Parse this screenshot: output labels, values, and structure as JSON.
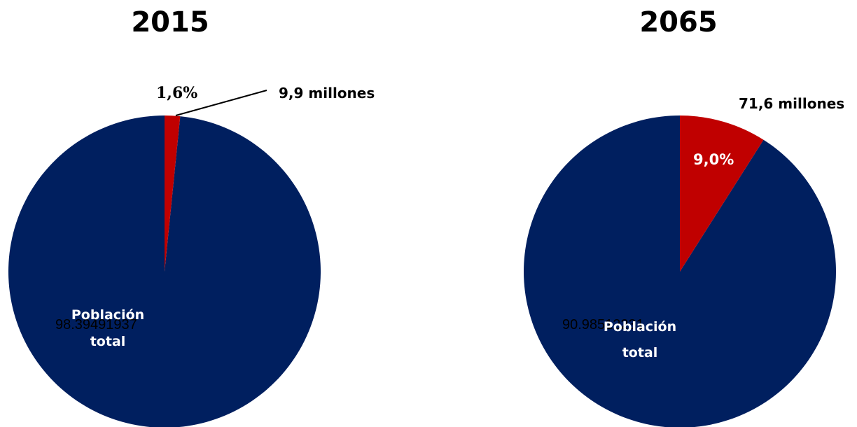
{
  "chart_data": [
    {
      "type": "pie",
      "title": "2015",
      "slices": [
        {
          "label": "Población total",
          "value": 98.39491937,
          "value_label": "98.39491937",
          "color": "#001f5f"
        },
        {
          "label": "9,9 millones",
          "value": 1.6,
          "value_label": "1,6%",
          "color": "#c00000"
        }
      ]
    },
    {
      "type": "pie",
      "title": "2065",
      "slices": [
        {
          "label": "Población total",
          "value": 90.98512231,
          "value_label": "90.98512231",
          "color": "#001f5f"
        },
        {
          "label": "71,6 millones",
          "value": 9.0,
          "value_label": "9,0%",
          "color": "#c00000"
        }
      ]
    }
  ],
  "labels": {
    "left_inside_line1": "Población",
    "left_inside_line2": "total",
    "right_inside_line1": "Población",
    "right_inside_line2": "total"
  }
}
